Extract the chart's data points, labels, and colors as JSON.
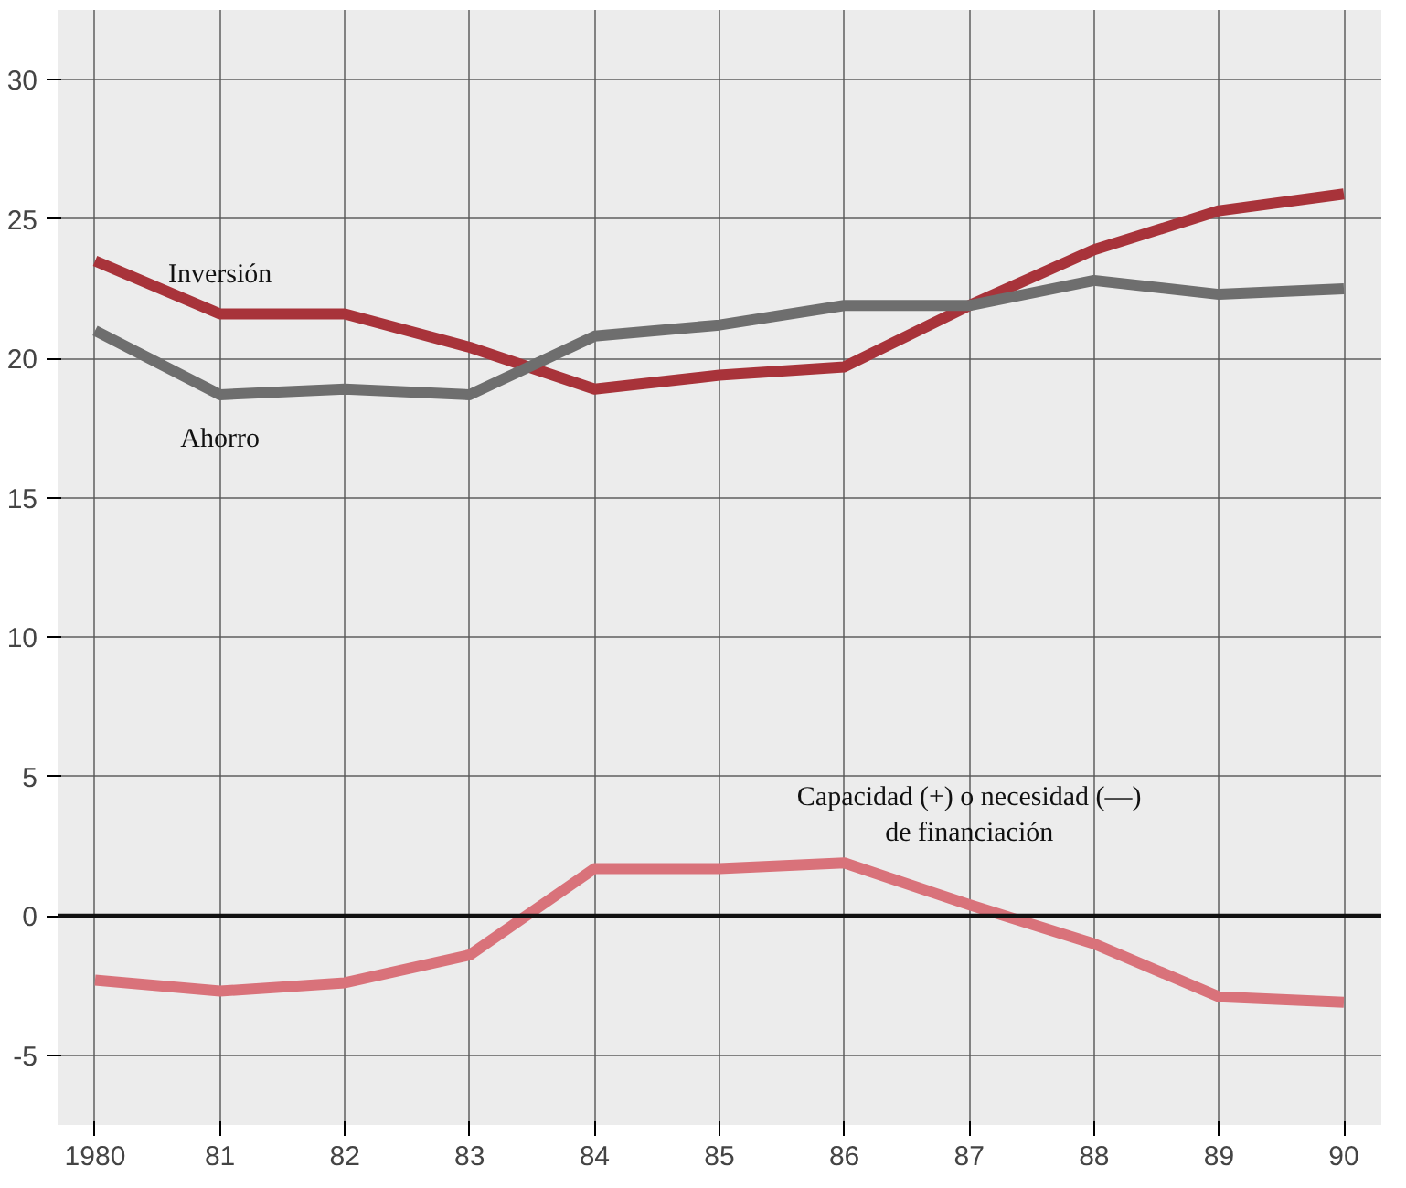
{
  "chart_data": {
    "type": "line",
    "x": [
      1980,
      1981,
      1982,
      1983,
      1984,
      1985,
      1986,
      1987,
      1988,
      1989,
      1990
    ],
    "series": [
      {
        "name": "Inversión",
        "color": "#a8333a",
        "values": [
          23.5,
          21.6,
          21.6,
          20.4,
          18.9,
          19.4,
          19.7,
          21.9,
          23.9,
          25.3,
          25.9
        ]
      },
      {
        "name": "Ahorro",
        "color": "#6e6e6e",
        "values": [
          21.0,
          18.7,
          18.9,
          18.7,
          20.8,
          21.2,
          21.9,
          21.9,
          22.8,
          22.3,
          22.5
        ]
      },
      {
        "name": "Capacidad (+) o necesidad (—)\nde financiación",
        "color": "#d9727a",
        "values": [
          -2.3,
          -2.7,
          -2.4,
          -1.4,
          1.7,
          1.7,
          1.9,
          0.4,
          -1.0,
          -2.9,
          -3.1
        ]
      }
    ],
    "xlim": [
      1979.7,
      1990.3
    ],
    "ylim": [
      -7.5,
      32.5
    ],
    "xticks": [
      {
        "value": 1980,
        "label": "1980"
      },
      {
        "value": 1981,
        "label": "81"
      },
      {
        "value": 1982,
        "label": "82"
      },
      {
        "value": 1983,
        "label": "83"
      },
      {
        "value": 1984,
        "label": "84"
      },
      {
        "value": 1985,
        "label": "85"
      },
      {
        "value": 1986,
        "label": "86"
      },
      {
        "value": 1987,
        "label": "87"
      },
      {
        "value": 1988,
        "label": "88"
      },
      {
        "value": 1989,
        "label": "89"
      },
      {
        "value": 1990,
        "label": "90"
      }
    ],
    "yticks": [
      -5,
      0,
      5,
      10,
      15,
      20,
      25,
      30
    ],
    "grid": true,
    "legend": false,
    "marker": "none",
    "line_style": "solid",
    "ref_lines": [
      {
        "axis": "y",
        "value": 0,
        "color": "#111111"
      }
    ]
  }
}
